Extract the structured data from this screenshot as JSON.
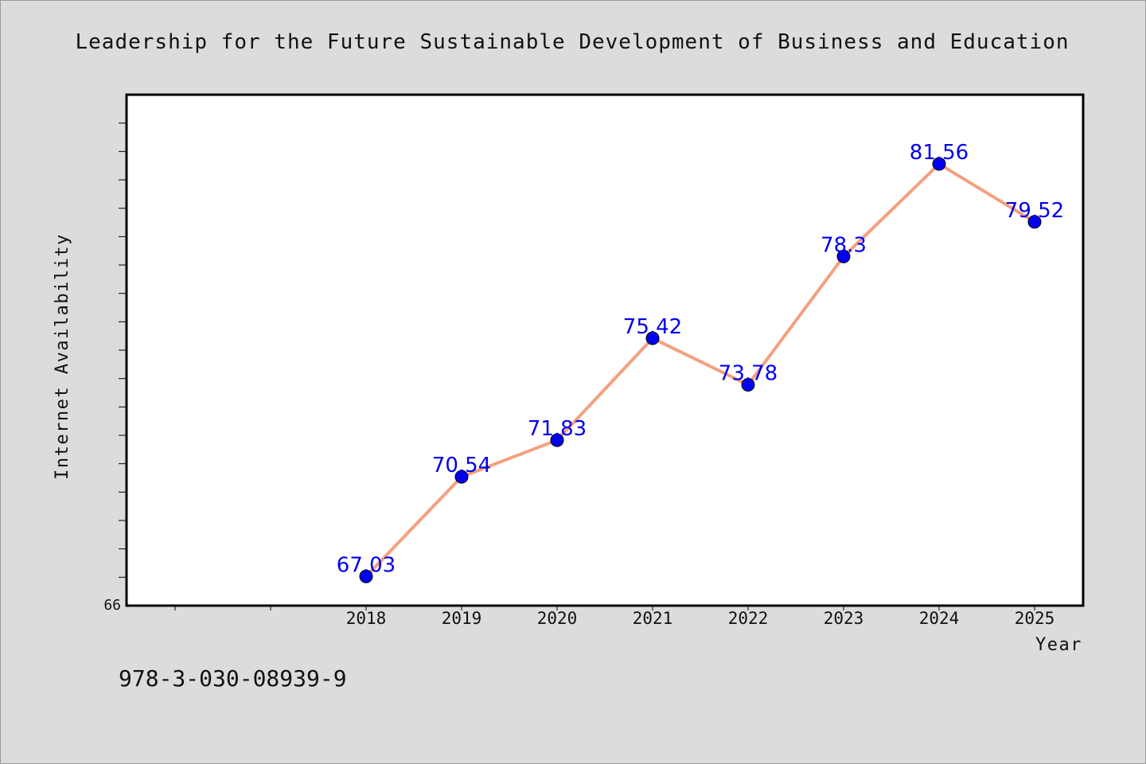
{
  "chart_data": {
    "type": "line",
    "title": "Leadership for the Future Sustainable Development of Business and Education",
    "xlabel": "Year",
    "ylabel": "Internet Availability",
    "categories": [
      "2018",
      "2019",
      "2020",
      "2021",
      "2022",
      "2023",
      "2024",
      "2025"
    ],
    "series": [
      {
        "values": [
          67.03,
          70.54,
          71.83,
          75.42,
          73.78,
          78.3,
          81.56,
          79.52
        ]
      }
    ],
    "data_labels": [
      "67.03",
      "70.54",
      "71.83",
      "75.42",
      "73.78",
      "78.3",
      "81.56",
      "79.52"
    ],
    "ylim": [
      66,
      84
    ],
    "y_tick_labels": [
      "66"
    ],
    "grid": false,
    "legend": "none",
    "colors": {
      "line": "#f4a07f",
      "marker": "#0000ee",
      "data_label": "#0000ee",
      "plot_background": "#ffffff",
      "figure_background": "#dcdcdc"
    }
  },
  "footer_text": "978-3-030-08939-9"
}
